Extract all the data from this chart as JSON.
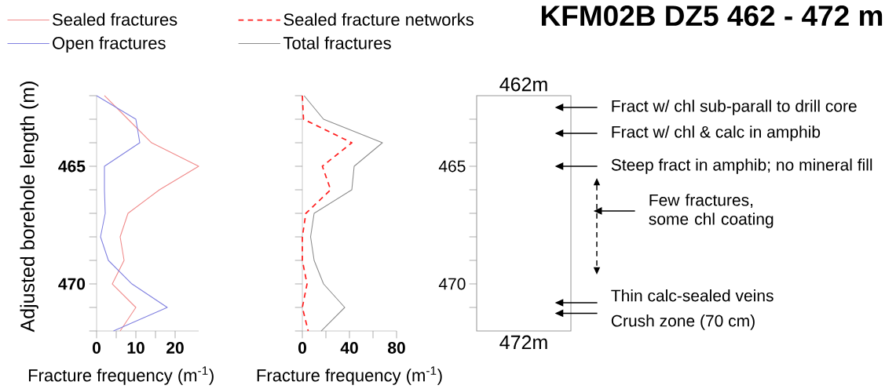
{
  "chart_data": [
    {
      "type": "line",
      "orientation": "horizontal",
      "xlabel": "Fracture frequency (m$^{-1}$)",
      "ylabel": "Adjusted borehole length (m)",
      "legend": "top left",
      "x": [
        462,
        463,
        464,
        465,
        466,
        467,
        468,
        469,
        470,
        471,
        472
      ],
      "xlim": [
        0,
        26
      ],
      "xticks": [
        0,
        {
          "value": 5,
          "label": null
        },
        10,
        {
          "value": 15,
          "label": null
        },
        20
      ],
      "ylim": [
        472,
        462
      ],
      "yticks": [
        {
          "value": 462,
          "label": null
        },
        {
          "value": 463,
          "label": null
        },
        {
          "value": 464,
          "label": null
        },
        465,
        {
          "value": 466,
          "label": null
        },
        {
          "value": 467,
          "label": null
        },
        {
          "value": 468,
          "label": null
        },
        {
          "value": 469,
          "label": null
        },
        470,
        {
          "value": 471,
          "label": null
        },
        {
          "value": 472,
          "label": null
        }
      ],
      "series": [
        {
          "name": "Sealed fractures",
          "color": "#f08a8a",
          "values": [
            2,
            8,
            14,
            26,
            16,
            8,
            6,
            7,
            4,
            10,
            6
          ]
        },
        {
          "name": "Open fractures",
          "color": "#8080e0",
          "values": [
            0,
            10,
            11,
            2,
            2,
            2.2,
            1,
            3,
            9,
            18,
            4.3
          ]
        }
      ]
    },
    {
      "type": "line",
      "orientation": "horizontal",
      "xlabel": "Fracture frequency (m$^{-1}$)",
      "legend": "top",
      "tick_labels": "x",
      "x": [
        462,
        463,
        464,
        465,
        466,
        467,
        468,
        469,
        470,
        471,
        472
      ],
      "xlim": [
        0,
        80
      ],
      "xticks": [
        0,
        {
          "value": 20,
          "label": null
        },
        40,
        {
          "value": 60,
          "label": null
        },
        80
      ],
      "ylim": [
        472,
        462
      ],
      "yticks": [
        462,
        463,
        464,
        465,
        466,
        467,
        468,
        469,
        470,
        471,
        472
      ],
      "series": [
        {
          "name": "Sealed fracture networks",
          "color": "#ff2020",
          "line_style": "dashed",
          "values": [
            0,
            1,
            42,
            17,
            24,
            3,
            0,
            0,
            4,
            0,
            5
          ]
        },
        {
          "name": "Total fractures",
          "color": "#8c8c8c",
          "values": [
            1.5,
            18,
            68,
            44,
            42,
            10,
            7,
            10,
            18,
            36,
            16
          ]
        }
      ]
    },
    {
      "type": "other",
      "title": "KFM02B  DZ5 462 - 472 m",
      "annotations": [
        "462m",
        "Fract w/ chl sub-parall to drill core",
        "Fract w/ chl & calc in amphib",
        "465",
        "Steep fract in amphib; no mineral fill",
        "Few fractures, some chl coating",
        "470",
        "Thin calc-sealed veins",
        "Crush zone (70 cm)",
        "472m"
      ]
    }
  ]
}
